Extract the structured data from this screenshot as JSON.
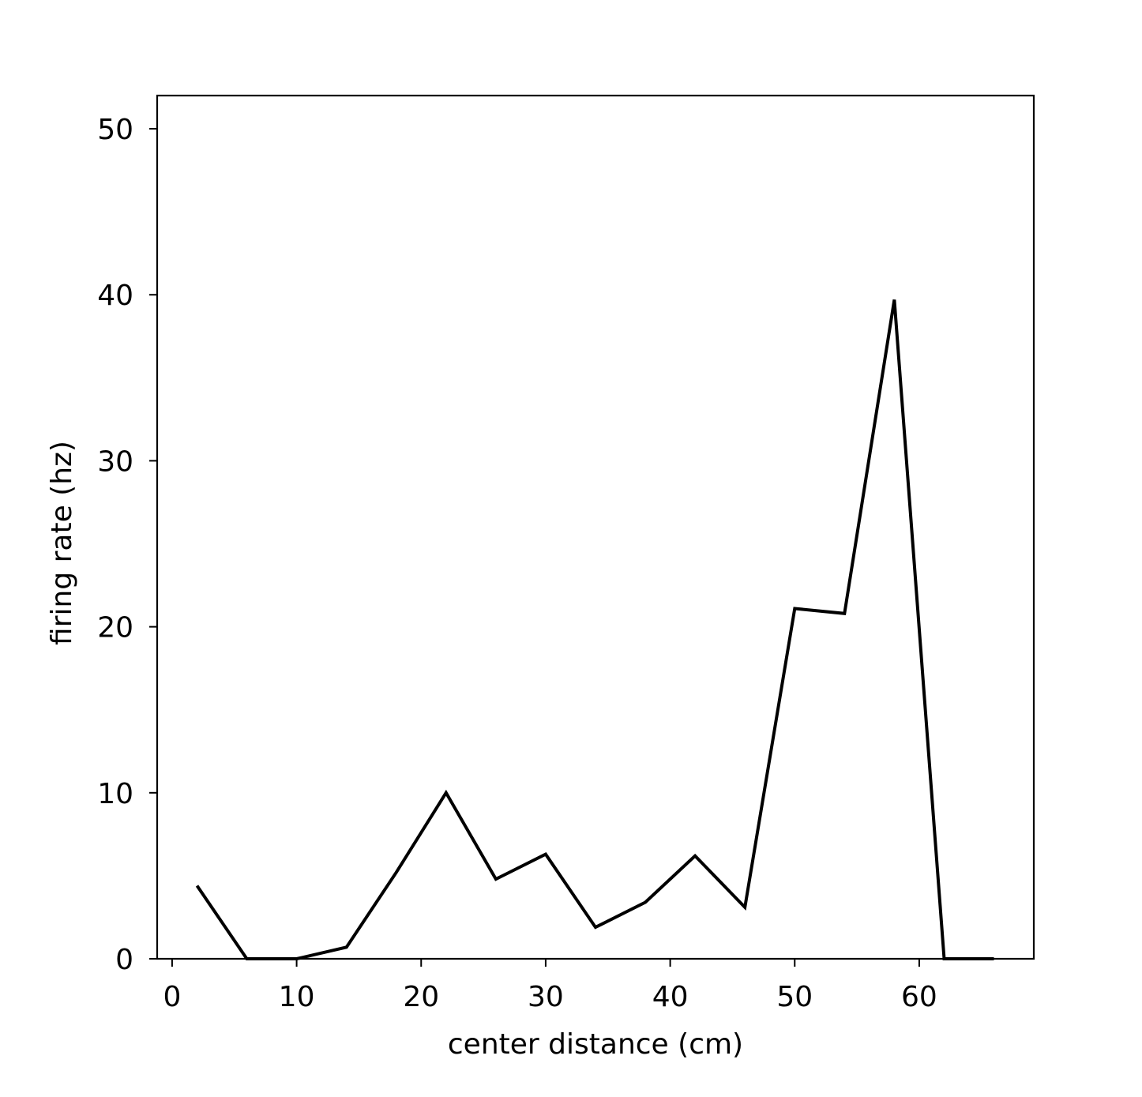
{
  "chart_data": {
    "type": "line",
    "title": "",
    "xlabel": "center distance (cm)",
    "ylabel": "firing rate (hz)",
    "xlim": [
      -1.2,
      69.2
    ],
    "ylim": [
      0,
      52
    ],
    "xticks": [
      0,
      10,
      20,
      30,
      40,
      50,
      60
    ],
    "yticks": [
      0,
      10,
      20,
      30,
      40,
      50
    ],
    "xtick_labels": [
      "0",
      "10",
      "20",
      "30",
      "40",
      "50",
      "60"
    ],
    "ytick_labels": [
      "0",
      "10",
      "20",
      "30",
      "40",
      "50"
    ],
    "grid": false,
    "legend": "none",
    "line_color": "#000000",
    "series": [
      {
        "x": [
          2,
          6,
          10,
          14,
          18,
          22,
          26,
          30,
          34,
          38,
          42,
          46,
          50,
          54,
          58,
          62,
          66
        ],
        "y": [
          4.4,
          0.0,
          0.0,
          0.7,
          5.2,
          10.0,
          4.8,
          6.3,
          1.9,
          3.4,
          6.2,
          3.1,
          21.1,
          20.8,
          39.7,
          0.0,
          0.0
        ]
      }
    ]
  }
}
